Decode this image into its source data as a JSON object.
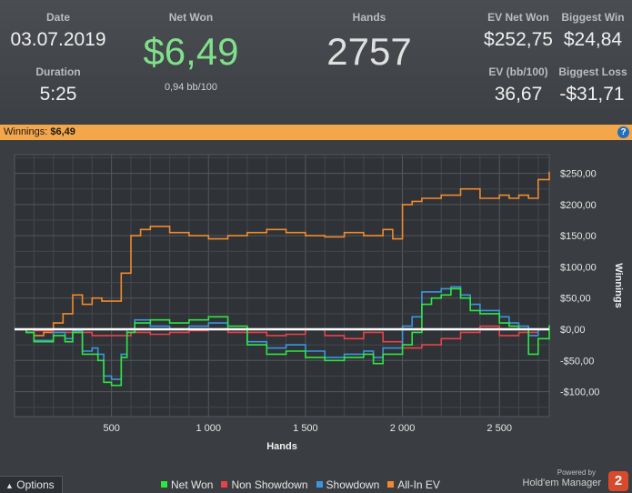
{
  "stats": {
    "date_label": "Date",
    "date_value": "03.07.2019",
    "duration_label": "Duration",
    "duration_value": "5:25",
    "net_won_label": "Net Won",
    "net_won_value": "$6,49",
    "bb100_value": "0,94 bb/100",
    "hands_label": "Hands",
    "hands_value": "2757",
    "ev_net_won_label": "EV Net Won",
    "ev_net_won_value": "$252,75",
    "biggest_win_label": "Biggest Win",
    "biggest_win_value": "$24,84",
    "ev_bb100_label": "EV (bb/100)",
    "ev_bb100_value": "36,67",
    "biggest_loss_label": "Biggest Loss",
    "biggest_loss_value": "-$31,71"
  },
  "winnings_bar": {
    "label": "Winnings:",
    "value": "$6,49",
    "help_icon": "help-icon"
  },
  "footer": {
    "options_label": "Options",
    "powered_by": "Powered by",
    "brand": "Hold'em Manager",
    "brand_badge": "2"
  },
  "colors": {
    "net_won": "#2ee640",
    "non_showdown": "#e8434a",
    "showdown": "#3a96e0",
    "all_in_ev": "#f08a2e",
    "accent": "#f3a64a"
  },
  "chart_data": {
    "type": "line",
    "xlabel": "Hands",
    "ylabel": "Winnings",
    "xlim": [
      0,
      2757
    ],
    "ylim": [
      -140,
      280
    ],
    "x_ticks": [
      500,
      1000,
      1500,
      2000,
      2500
    ],
    "x_tick_labels": [
      "500",
      "1 000",
      "1 500",
      "2 000",
      "2 500"
    ],
    "y_ticks": [
      250,
      200,
      150,
      100,
      50,
      0,
      -50,
      -100
    ],
    "y_tick_labels": [
      "$250,00",
      "$200,00",
      "$150,00",
      "$100,00",
      "$50,00",
      "$0,00",
      "-$50,00",
      "-$100,00"
    ],
    "grid": true,
    "legend_position": "bottom",
    "series": [
      {
        "name": "Net Won",
        "color": "#2ee640",
        "x": [
          0,
          60,
          100,
          200,
          260,
          300,
          350,
          400,
          430,
          460,
          500,
          550,
          580,
          620,
          700,
          800,
          900,
          1000,
          1100,
          1200,
          1300,
          1400,
          1500,
          1600,
          1700,
          1800,
          1850,
          1900,
          2000,
          2050,
          2100,
          2150,
          2200,
          2250,
          2300,
          2350,
          2400,
          2450,
          2500,
          2550,
          2600,
          2650,
          2700,
          2757
        ],
        "y": [
          0,
          -5,
          -20,
          -10,
          -20,
          -5,
          -40,
          -40,
          -50,
          -85,
          -90,
          -45,
          -5,
          10,
          15,
          10,
          15,
          20,
          5,
          -25,
          -40,
          -35,
          -45,
          -50,
          -45,
          -40,
          -55,
          -40,
          -25,
          -5,
          40,
          50,
          55,
          65,
          50,
          30,
          25,
          25,
          10,
          5,
          0,
          -40,
          -15,
          6.49
        ]
      },
      {
        "name": "Non Showdown",
        "color": "#e8434a",
        "x": [
          0,
          100,
          200,
          300,
          400,
          500,
          600,
          700,
          800,
          900,
          1000,
          1100,
          1200,
          1300,
          1400,
          1500,
          1600,
          1700,
          1800,
          1900,
          2000,
          2100,
          2200,
          2300,
          2400,
          2500,
          2600,
          2700,
          2757
        ],
        "y": [
          0,
          -2,
          -5,
          -5,
          -10,
          -10,
          -5,
          -8,
          -5,
          -2,
          0,
          -5,
          -5,
          -10,
          -8,
          0,
          -10,
          -15,
          -5,
          -20,
          -30,
          -25,
          -15,
          -5,
          5,
          -10,
          -5,
          0,
          0
        ]
      },
      {
        "name": "Showdown",
        "color": "#3a96e0",
        "x": [
          0,
          60,
          100,
          200,
          260,
          300,
          350,
          400,
          430,
          460,
          500,
          550,
          580,
          620,
          700,
          800,
          900,
          1000,
          1100,
          1200,
          1300,
          1400,
          1500,
          1600,
          1700,
          1800,
          1850,
          1900,
          2000,
          2050,
          2100,
          2150,
          2200,
          2250,
          2300,
          2350,
          2400,
          2450,
          2500,
          2550,
          2600,
          2650,
          2700,
          2757
        ],
        "y": [
          0,
          -5,
          -18,
          -5,
          -15,
          -2,
          -35,
          -30,
          -40,
          -75,
          -80,
          -40,
          0,
          15,
          5,
          0,
          5,
          10,
          0,
          -20,
          -30,
          -25,
          -35,
          -45,
          -40,
          -35,
          -45,
          -30,
          5,
          20,
          60,
          60,
          65,
          68,
          55,
          40,
          30,
          30,
          20,
          10,
          5,
          -10,
          0,
          6
        ]
      },
      {
        "name": "All-In EV",
        "color": "#f08a2e",
        "x": [
          0,
          60,
          100,
          150,
          200,
          250,
          300,
          350,
          400,
          450,
          500,
          550,
          600,
          650,
          700,
          800,
          900,
          1000,
          1100,
          1200,
          1300,
          1400,
          1500,
          1600,
          1700,
          1800,
          1900,
          1950,
          2000,
          2050,
          2100,
          2200,
          2300,
          2400,
          2500,
          2550,
          2600,
          2650,
          2700,
          2757
        ],
        "y": [
          0,
          -5,
          -10,
          -5,
          10,
          25,
          55,
          40,
          50,
          45,
          45,
          90,
          150,
          160,
          165,
          155,
          150,
          145,
          150,
          155,
          160,
          155,
          150,
          148,
          155,
          150,
          160,
          145,
          200,
          205,
          210,
          215,
          225,
          210,
          215,
          210,
          215,
          210,
          240,
          252.75
        ]
      }
    ]
  }
}
